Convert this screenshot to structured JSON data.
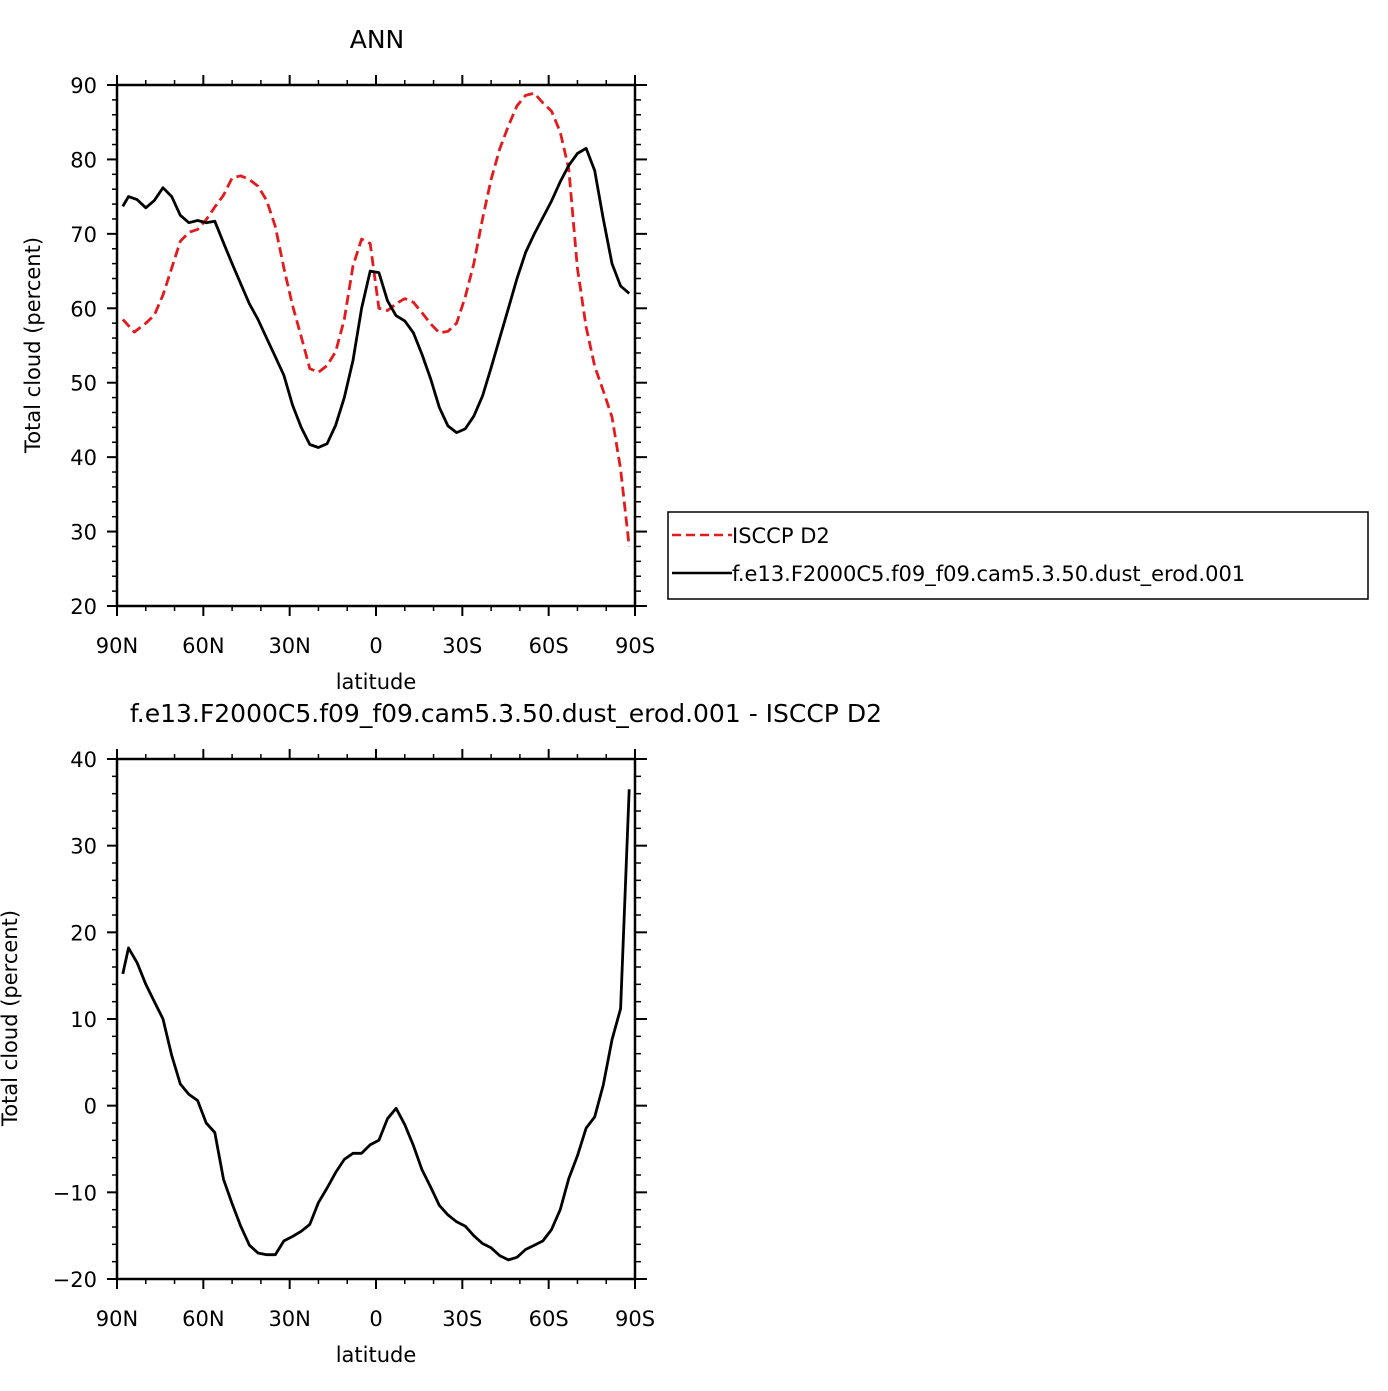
{
  "chart_data": [
    {
      "type": "line",
      "title": "ANN",
      "xlabel": "latitude",
      "ylabel": "Total cloud (percent)",
      "xlim": [
        90,
        -90
      ],
      "ylim": [
        20,
        90
      ],
      "x_tick_labels": [
        "90N",
        "60N",
        "30N",
        "0",
        "30S",
        "60S",
        "90S"
      ],
      "y_tick_labels": [
        "20",
        "30",
        "40",
        "50",
        "60",
        "70",
        "80",
        "90"
      ],
      "legend_position": "right",
      "series": [
        {
          "name": "ISCCP D2",
          "color": "#e41a1c",
          "dash": "dashed",
          "x": [
            88,
            84,
            80,
            77,
            74,
            71,
            68,
            65,
            62,
            59,
            56,
            53,
            50,
            47,
            44,
            41,
            38,
            35,
            32,
            29,
            26,
            23,
            20,
            17,
            14,
            11,
            8,
            5,
            2,
            -1,
            -4,
            -7,
            -10,
            -13,
            -16,
            -19,
            -22,
            -25,
            -28,
            -31,
            -34,
            -37,
            -40,
            -43,
            -46,
            -49,
            -52,
            -55,
            -58,
            -61,
            -64,
            -67,
            -70,
            -73,
            -76,
            -79,
            -82,
            -85,
            -88
          ],
          "y": [
            58.5,
            56.8,
            58.0,
            59.1,
            61.8,
            65.4,
            69.0,
            70.2,
            70.6,
            71.9,
            73.6,
            75.2,
            77.5,
            77.8,
            77.3,
            76.4,
            74.5,
            71.0,
            65.4,
            60.4,
            56.2,
            51.9,
            51.4,
            52.3,
            54.2,
            58.5,
            65.7,
            69.3,
            68.7,
            60.0,
            59.7,
            60.6,
            61.3,
            60.8,
            59.4,
            57.9,
            56.7,
            56.9,
            58.0,
            61.5,
            66.0,
            72.0,
            77.3,
            81.4,
            84.5,
            87.2,
            88.6,
            88.9,
            87.6,
            86.5,
            83.7,
            78.7,
            65.4,
            57.5,
            52.2,
            48.9,
            45.4,
            38.4,
            28.0
          ]
        },
        {
          "name": "f.e13.F2000C5.f09_f09.cam5.3.50.dust_erod.001",
          "color": "#000000",
          "dash": "solid",
          "x": [
            88,
            86,
            83,
            80,
            77,
            74,
            71,
            68,
            65,
            62,
            59,
            56,
            53,
            50,
            47,
            44,
            41,
            38,
            35,
            32,
            29,
            26,
            23,
            20,
            17,
            14,
            11,
            8,
            5,
            2,
            -1,
            -4,
            -7,
            -10,
            -13,
            -16,
            -19,
            -22,
            -25,
            -28,
            -31,
            -34,
            -37,
            -40,
            -43,
            -46,
            -49,
            -52,
            -55,
            -58,
            -61,
            -64,
            -67,
            -70,
            -73,
            -76,
            -79,
            -82,
            -85,
            -88
          ],
          "y": [
            73.7,
            75.0,
            74.6,
            73.5,
            74.5,
            76.2,
            75.0,
            72.5,
            71.5,
            71.8,
            71.5,
            71.7,
            68.8,
            66.0,
            63.3,
            60.6,
            58.5,
            56.0,
            53.5,
            51.0,
            47.0,
            44.0,
            41.7,
            41.3,
            41.8,
            44.3,
            48.0,
            53.0,
            60.0,
            65.0,
            64.8,
            61.0,
            59.0,
            58.3,
            56.7,
            53.8,
            50.5,
            46.7,
            44.2,
            43.3,
            43.8,
            45.5,
            48.2,
            52.0,
            56.0,
            60.0,
            64.0,
            67.5,
            70.0,
            72.2,
            74.4,
            77.0,
            79.2,
            80.8,
            81.5,
            78.5,
            72.0,
            66.0,
            63.0,
            62.0
          ]
        }
      ]
    },
    {
      "type": "line",
      "title": "f.e13.F2000C5.f09_f09.cam5.3.50.dust_erod.001 - ISCCP D2",
      "xlabel": "latitude",
      "ylabel": "Total cloud (percent)",
      "xlim": [
        90,
        -90
      ],
      "ylim": [
        -20,
        40
      ],
      "x_tick_labels": [
        "90N",
        "60N",
        "30N",
        "0",
        "30S",
        "60S",
        "90S"
      ],
      "y_tick_labels": [
        "−20",
        "−10",
        "0",
        "10",
        "20",
        "30",
        "40"
      ],
      "series": [
        {
          "color": "#000000",
          "dash": "solid",
          "x": [
            88,
            86,
            83,
            80,
            77,
            74,
            71,
            68,
            65,
            62,
            59,
            56,
            53,
            50,
            47,
            44,
            41,
            38,
            35,
            32,
            29,
            26,
            23,
            20,
            17,
            14,
            11,
            8,
            5,
            2,
            -1,
            -4,
            -7,
            -10,
            -13,
            -16,
            -19,
            -22,
            -25,
            -28,
            -31,
            -34,
            -37,
            -40,
            -43,
            -46,
            -49,
            -52,
            -55,
            -58,
            -61,
            -64,
            -67,
            -70,
            -73,
            -76,
            -79,
            -82,
            -85,
            -88
          ],
          "y": [
            15.2,
            18.2,
            16.5,
            14.0,
            12.0,
            10.0,
            5.8,
            2.5,
            1.3,
            0.6,
            -2.0,
            -3.1,
            -8.5,
            -11.3,
            -13.9,
            -16.1,
            -17.0,
            -17.2,
            -17.2,
            -15.6,
            -15.1,
            -14.5,
            -13.7,
            -11.2,
            -9.5,
            -7.7,
            -6.2,
            -5.5,
            -5.5,
            -4.5,
            -4.0,
            -1.5,
            -0.3,
            -2.2,
            -4.6,
            -7.4,
            -9.4,
            -11.5,
            -12.6,
            -13.4,
            -13.9,
            -15.0,
            -15.9,
            -16.4,
            -17.3,
            -17.8,
            -17.5,
            -16.6,
            -16.1,
            -15.6,
            -14.3,
            -12.0,
            -8.4,
            -5.8,
            -2.6,
            -1.3,
            2.4,
            7.6,
            11.2,
            36.5
          ]
        }
      ]
    }
  ]
}
